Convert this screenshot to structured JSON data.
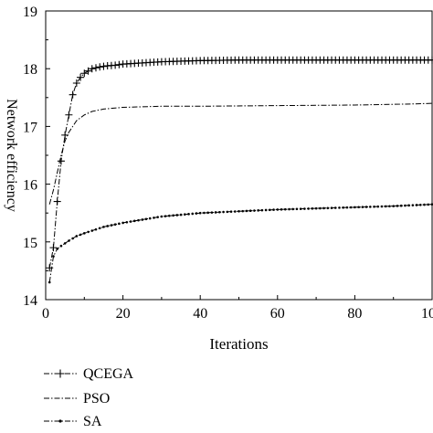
{
  "chart_data": {
    "type": "line",
    "xlabel": "Iterations",
    "ylabel": "Network efficiency",
    "xlim": [
      0,
      100
    ],
    "ylim": [
      14,
      19
    ],
    "xticks": [
      "0",
      "20",
      "40",
      "60",
      "80",
      "100"
    ],
    "yticks": [
      "14",
      "15",
      "16",
      "17",
      "18",
      "19"
    ],
    "grid": false,
    "legend_position": "bottom-left, below plot",
    "series": [
      {
        "name": "QCEGA",
        "style": "dash-dot with plus markers",
        "color": "#000000",
        "x": [
          1,
          2,
          3,
          4,
          5,
          6,
          7,
          8,
          9,
          10,
          12,
          14,
          16,
          18,
          20,
          25,
          30,
          35,
          40,
          50,
          60,
          70,
          80,
          90,
          100
        ],
        "y": [
          14.55,
          14.9,
          15.7,
          16.4,
          16.85,
          17.2,
          17.55,
          17.75,
          17.85,
          17.92,
          18.0,
          18.03,
          18.05,
          18.06,
          18.08,
          18.1,
          18.12,
          18.13,
          18.14,
          18.15,
          18.15,
          18.15,
          18.15,
          18.15,
          18.15
        ]
      },
      {
        "name": "PSO",
        "style": "dash-dot",
        "color": "#000000",
        "x": [
          1,
          2,
          3,
          4,
          5,
          6,
          8,
          10,
          12,
          15,
          20,
          30,
          40,
          60,
          80,
          95,
          100
        ],
        "y": [
          15.65,
          15.9,
          16.2,
          16.5,
          16.75,
          16.9,
          17.1,
          17.2,
          17.26,
          17.3,
          17.33,
          17.35,
          17.35,
          17.36,
          17.37,
          17.39,
          17.4
        ]
      },
      {
        "name": "SA",
        "style": "dash-dot with dot markers",
        "color": "#000000",
        "x": [
          1,
          2,
          3,
          4,
          6,
          8,
          10,
          15,
          20,
          30,
          40,
          50,
          60,
          70,
          80,
          90,
          100
        ],
        "y": [
          14.3,
          14.75,
          14.88,
          14.93,
          15.02,
          15.1,
          15.15,
          15.26,
          15.33,
          15.44,
          15.5,
          15.53,
          15.56,
          15.58,
          15.6,
          15.62,
          15.65
        ]
      }
    ]
  }
}
